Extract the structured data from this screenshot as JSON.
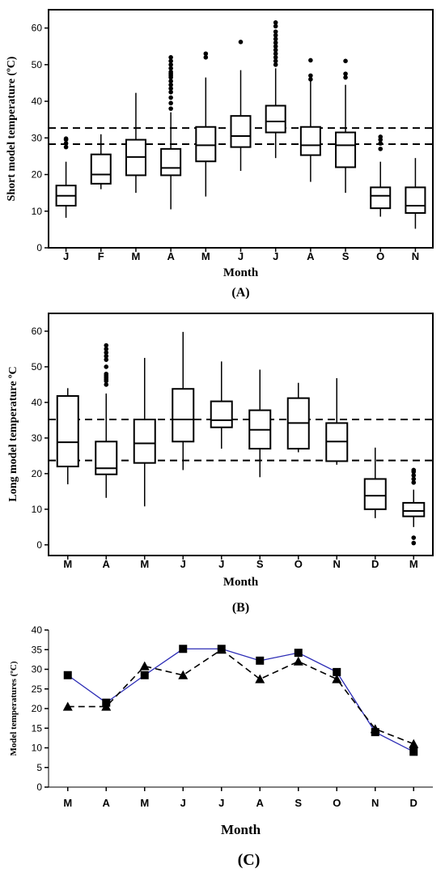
{
  "chart_data": [
    {
      "type": "box",
      "panel_label": "(A)",
      "xlabel": "Month",
      "ylabel": "Short model temperature (ºC)",
      "ylim": [
        0,
        65
      ],
      "yticks": [
        0,
        10,
        20,
        30,
        40,
        50,
        60
      ],
      "categories": [
        "J",
        "F",
        "M",
        "A",
        "M",
        "J",
        "J",
        "A",
        "S",
        "O",
        "N"
      ],
      "reference_lines": [
        28.3,
        32.7
      ],
      "boxes": [
        {
          "min": 8.2,
          "q1": 11.5,
          "median": 14.2,
          "q3": 17.0,
          "max": 23.5,
          "outliers": [
            27.5,
            28.5,
            29.5,
            29.8
          ]
        },
        {
          "min": 16.0,
          "q1": 17.5,
          "median": 20.0,
          "q3": 25.5,
          "max": 31.0,
          "outliers": []
        },
        {
          "min": 15.0,
          "q1": 19.8,
          "median": 24.8,
          "q3": 29.5,
          "max": 42.3,
          "outliers": []
        },
        {
          "min": 10.5,
          "q1": 19.8,
          "median": 21.8,
          "q3": 27.0,
          "max": 37.0,
          "outliers": [
            38.0,
            39.5,
            41.0,
            42.5,
            43.5,
            44.5,
            45.5,
            46.5,
            47.0,
            47.5,
            48.0,
            49.0,
            50.0,
            51.0,
            52.0
          ]
        },
        {
          "min": 14.0,
          "q1": 23.6,
          "median": 28.0,
          "q3": 33.0,
          "max": 46.5,
          "outliers": [
            52.0,
            53.0
          ]
        },
        {
          "min": 21.0,
          "q1": 27.5,
          "median": 30.5,
          "q3": 36.0,
          "max": 48.5,
          "outliers": [
            56.2
          ]
        },
        {
          "min": 24.5,
          "q1": 31.5,
          "median": 34.5,
          "q3": 38.8,
          "max": 49.0,
          "outliers": [
            50.0,
            51.0,
            52.0,
            53.0,
            54.0,
            55.0,
            56.0,
            57.0,
            58.0,
            59.0,
            60.5,
            61.5
          ]
        },
        {
          "min": 18.0,
          "q1": 25.3,
          "median": 28.0,
          "q3": 33.0,
          "max": 45.5,
          "outliers": [
            46.0,
            47.0,
            51.2
          ]
        },
        {
          "min": 15.0,
          "q1": 22.0,
          "median": 28.0,
          "q3": 31.5,
          "max": 44.5,
          "outliers": [
            46.5,
            47.5,
            51.0
          ]
        },
        {
          "min": 8.5,
          "q1": 10.8,
          "median": 14.2,
          "q3": 16.5,
          "max": 23.5,
          "outliers": [
            27.0,
            28.5,
            29.5,
            30.3
          ]
        },
        {
          "min": 5.2,
          "q1": 9.5,
          "median": 11.5,
          "q3": 16.5,
          "max": 24.5,
          "outliers": []
        }
      ]
    },
    {
      "type": "box",
      "panel_label": "(B)",
      "xlabel": "Month",
      "ylabel": "Long model temperature ºC",
      "ylim": [
        -3,
        65
      ],
      "yticks": [
        0,
        10,
        20,
        30,
        40,
        50,
        60
      ],
      "categories": [
        "M",
        "A",
        "M",
        "J",
        "J",
        "S",
        "O",
        "N",
        "D",
        "M"
      ],
      "reference_lines": [
        23.7,
        35.2
      ],
      "boxes": [
        {
          "min": 17.0,
          "q1": 22.0,
          "median": 28.8,
          "q3": 41.8,
          "max": 44.0,
          "outliers": []
        },
        {
          "min": 13.2,
          "q1": 19.8,
          "median": 21.5,
          "q3": 29.0,
          "max": 42.5,
          "outliers": [
            45.0,
            46.0,
            46.5,
            47.0,
            47.5,
            48.0,
            50.0,
            52.0,
            53.0,
            54.0,
            55.0,
            56.0
          ]
        },
        {
          "min": 10.8,
          "q1": 23.0,
          "median": 28.5,
          "q3": 35.2,
          "max": 52.5,
          "outliers": []
        },
        {
          "min": 21.0,
          "q1": 29.0,
          "median": 35.2,
          "q3": 43.8,
          "max": 59.8,
          "outliers": []
        },
        {
          "min": 27.0,
          "q1": 33.0,
          "median": 35.0,
          "q3": 40.3,
          "max": 51.5,
          "outliers": []
        },
        {
          "min": 19.0,
          "q1": 27.0,
          "median": 32.3,
          "q3": 37.8,
          "max": 49.2,
          "outliers": []
        },
        {
          "min": 26.0,
          "q1": 27.0,
          "median": 34.2,
          "q3": 41.2,
          "max": 45.5,
          "outliers": []
        },
        {
          "min": 22.5,
          "q1": 23.5,
          "median": 29.0,
          "q3": 34.2,
          "max": 46.8,
          "outliers": []
        },
        {
          "min": 7.5,
          "q1": 10.0,
          "median": 13.8,
          "q3": 18.5,
          "max": 27.3,
          "outliers": []
        },
        {
          "min": 5.0,
          "q1": 8.0,
          "median": 9.5,
          "q3": 11.8,
          "max": 15.5,
          "outliers": [
            0.5,
            2.0,
            17.5,
            18.5,
            19.5,
            20.5,
            21.0
          ]
        }
      ]
    },
    {
      "type": "line",
      "panel_label": "(C)",
      "xlabel": "Month",
      "ylabel": "Model temperatures (ºC)",
      "ylim": [
        0,
        40
      ],
      "yticks": [
        0,
        5,
        10,
        15,
        20,
        25,
        30,
        35,
        40
      ],
      "categories": [
        "M",
        "A",
        "M",
        "J",
        "J",
        "A",
        "S",
        "O",
        "N",
        "D"
      ],
      "series": [
        {
          "marker": "square",
          "line_style": "solid",
          "color": "#2b2bb5",
          "values": [
            28.5,
            21.5,
            28.5,
            35.2,
            35.2,
            32.2,
            34.2,
            29.3,
            14.0,
            9.0
          ]
        },
        {
          "marker": "triangle",
          "line_style": "dashed",
          "color": "#000000",
          "values": [
            20.5,
            20.5,
            30.8,
            28.5,
            35.0,
            27.5,
            32.0,
            27.5,
            14.8,
            11.0
          ]
        }
      ]
    }
  ]
}
